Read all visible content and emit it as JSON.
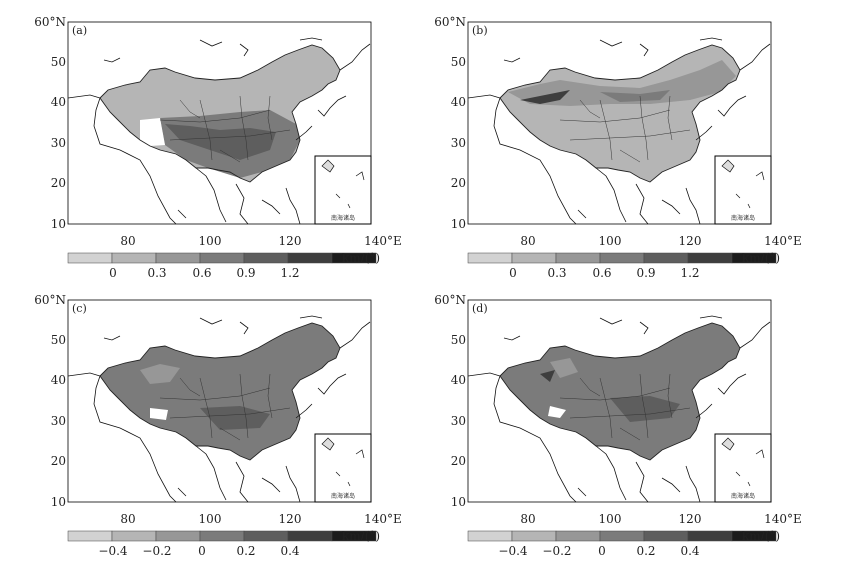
{
  "figure": {
    "panels": [
      {
        "label": "(a)",
        "y_ticks": [
          "60°N",
          "50",
          "40",
          "30",
          "20",
          "10"
        ],
        "x_ticks": [
          "80",
          "100",
          "120",
          "140°E"
        ],
        "colorbar": {
          "ticks": [
            "0",
            "0.3",
            "0.6",
            "0.9",
            "1.2"
          ],
          "unit": "km/(°)"
        },
        "inset_label": "南海诸岛",
        "scheme": "positive-a"
      },
      {
        "label": "(b)",
        "y_ticks": [
          "60°N",
          "50",
          "40",
          "30",
          "20",
          "10"
        ],
        "x_ticks": [
          "80",
          "100",
          "120",
          "140°E"
        ],
        "colorbar": {
          "ticks": [
            "0",
            "0.3",
            "0.6",
            "0.9",
            "1.2"
          ],
          "unit": "km/(°)"
        },
        "inset_label": "南海诸岛",
        "scheme": "positive-b"
      },
      {
        "label": "(c)",
        "y_ticks": [
          "60°N",
          "50",
          "40",
          "30",
          "20",
          "10"
        ],
        "x_ticks": [
          "80",
          "100",
          "120",
          "140°E"
        ],
        "colorbar": {
          "ticks": [
            "−0.4",
            "−0.2",
            "0",
            "0.2",
            "0.4"
          ],
          "unit": "km/(°)"
        },
        "inset_label": "南海诸岛",
        "scheme": "signed-c"
      },
      {
        "label": "(d)",
        "y_ticks": [
          "60°N",
          "50",
          "40",
          "30",
          "20",
          "10"
        ],
        "x_ticks": [
          "80",
          "100",
          "120",
          "140°E"
        ],
        "colorbar": {
          "ticks": [
            "−0.4",
            "−0.2",
            "0",
            "0.2",
            "0.4"
          ],
          "unit": "km/(°)"
        },
        "inset_label": "南海诸岛",
        "scheme": "signed-d"
      }
    ],
    "colorbar_colors": [
      "#d2d2d2",
      "#b5b5b5",
      "#979797",
      "#7b7b7b",
      "#5e5e5e",
      "#3e3e3e",
      "#1c1c1c"
    ]
  }
}
